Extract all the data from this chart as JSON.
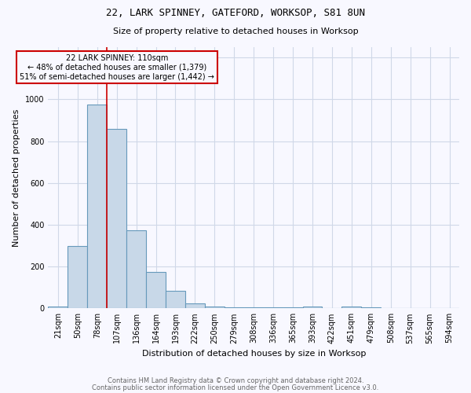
{
  "title1": "22, LARK SPINNEY, GATEFORD, WORKSOP, S81 8UN",
  "title2": "Size of property relative to detached houses in Worksop",
  "xlabel": "Distribution of detached houses by size in Worksop",
  "ylabel": "Number of detached properties",
  "footnote1": "Contains HM Land Registry data © Crown copyright and database right 2024.",
  "footnote2": "Contains public sector information licensed under the Open Government Licence v3.0.",
  "annotation_line1": "22 LARK SPINNEY: 110sqm",
  "annotation_line2": "← 48% of detached houses are smaller (1,379)",
  "annotation_line3": "51% of semi-detached houses are larger (1,442) →",
  "bin_labels": [
    "21sqm",
    "50sqm",
    "78sqm",
    "107sqm",
    "136sqm",
    "164sqm",
    "193sqm",
    "222sqm",
    "250sqm",
    "279sqm",
    "308sqm",
    "336sqm",
    "365sqm",
    "393sqm",
    "422sqm",
    "451sqm",
    "479sqm",
    "508sqm",
    "537sqm",
    "565sqm",
    "594sqm"
  ],
  "bar_heights": [
    10,
    300,
    975,
    860,
    375,
    175,
    85,
    25,
    10,
    5,
    5,
    5,
    5,
    10,
    0,
    10,
    5,
    0,
    0,
    0,
    0
  ],
  "bar_color": "#c8d8e8",
  "bar_edge_color": "#6699bb",
  "grid_color": "#d0d8e8",
  "property_line_x": 3,
  "property_line_color": "#cc0000",
  "annotation_box_color": "#cc0000",
  "ylim": [
    0,
    1250
  ],
  "yticks": [
    0,
    200,
    400,
    600,
    800,
    1000,
    1200
  ],
  "background_color": "#f8f8ff",
  "title1_fontsize": 9,
  "title2_fontsize": 8,
  "ylabel_fontsize": 8,
  "xlabel_fontsize": 8,
  "tick_fontsize": 7,
  "annot_fontsize": 7,
  "footnote_fontsize": 6
}
